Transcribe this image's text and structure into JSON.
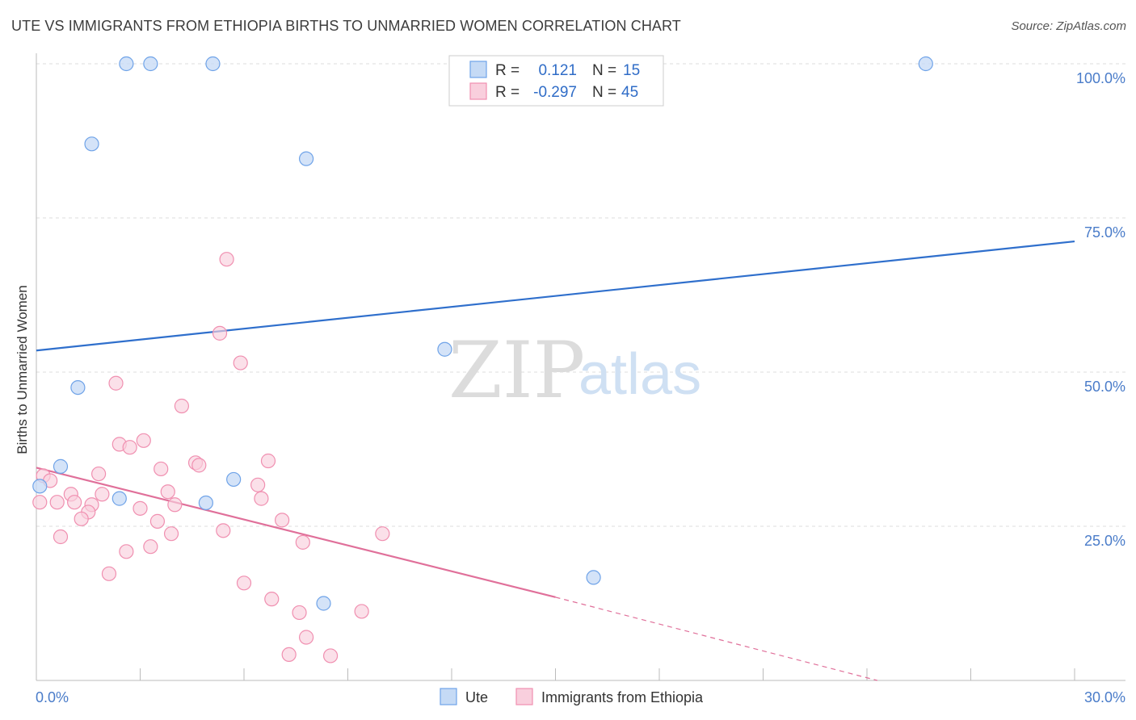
{
  "title": "UTE VS IMMIGRANTS FROM ETHIOPIA BIRTHS TO UNMARRIED WOMEN CORRELATION CHART",
  "source": "Source: ZipAtlas.com",
  "watermark": {
    "zip": "ZIP",
    "atlas": "atlas"
  },
  "colors": {
    "ute": "#6fa3e8",
    "ute_fill": "#c5daf5",
    "ute_line": "#2f6fcc",
    "eth": "#f08fb0",
    "eth_fill": "#f9cfdd",
    "eth_line": "#e0709a",
    "tick_text": "#4a7cc9",
    "grid": "#dddddd"
  },
  "legend": {
    "rows": [
      {
        "r_label": "R =",
        "r_value": "0.121",
        "n_label": "N =",
        "n_value": "15",
        "series": "ute"
      },
      {
        "r_label": "R =",
        "r_value": "-0.297",
        "n_label": "N =",
        "n_value": "45",
        "series": "eth"
      }
    ]
  },
  "chart_data": {
    "type": "scatter",
    "title": "UTE VS IMMIGRANTS FROM ETHIOPIA BIRTHS TO UNMARRIED WOMEN CORRELATION CHART",
    "xlabel": "",
    "ylabel": "Births to Unmarried Women",
    "xlim": [
      0,
      30
    ],
    "ylim": [
      0,
      100
    ],
    "x_tick_labels": [
      "0.0%",
      "30.0%"
    ],
    "y_ticks": [
      25,
      50,
      75,
      100
    ],
    "y_tick_labels": [
      "25.0%",
      "50.0%",
      "75.0%",
      "100.0%"
    ],
    "grid": true,
    "series": [
      {
        "name": "Ute",
        "points": [
          [
            2.6,
            100
          ],
          [
            3.3,
            100
          ],
          [
            5.1,
            100
          ],
          [
            25.7,
            100
          ],
          [
            1.6,
            87
          ],
          [
            7.8,
            84.6
          ],
          [
            11.8,
            53.7
          ],
          [
            1.2,
            47.5
          ],
          [
            0.7,
            34.7
          ],
          [
            0.1,
            31.5
          ],
          [
            2.4,
            29.5
          ],
          [
            4.9,
            28.8
          ],
          [
            5.7,
            32.6
          ],
          [
            8.3,
            12.5
          ],
          [
            16.1,
            16.7
          ]
        ],
        "trend": {
          "x": [
            0,
            30
          ],
          "y": [
            53.5,
            71.2
          ],
          "dashed_from": null
        }
      },
      {
        "name": "Immigrants from Ethiopia",
        "points": [
          [
            5.5,
            68.3
          ],
          [
            5.3,
            56.3
          ],
          [
            5.9,
            51.5
          ],
          [
            2.3,
            48.2
          ],
          [
            4.2,
            44.5
          ],
          [
            3.1,
            38.9
          ],
          [
            2.4,
            38.3
          ],
          [
            2.7,
            37.8
          ],
          [
            6.7,
            35.6
          ],
          [
            4.6,
            35.3
          ],
          [
            4.7,
            34.9
          ],
          [
            3.6,
            34.3
          ],
          [
            1.8,
            33.5
          ],
          [
            0.2,
            33.2
          ],
          [
            0.4,
            32.4
          ],
          [
            6.4,
            31.7
          ],
          [
            3.8,
            30.6
          ],
          [
            1.0,
            30.2
          ],
          [
            1.9,
            30.2
          ],
          [
            6.5,
            29.5
          ],
          [
            0.1,
            28.9
          ],
          [
            0.6,
            28.9
          ],
          [
            1.1,
            28.9
          ],
          [
            1.6,
            28.5
          ],
          [
            4.0,
            28.5
          ],
          [
            3.0,
            27.9
          ],
          [
            1.5,
            27.3
          ],
          [
            1.3,
            26.2
          ],
          [
            7.1,
            26.0
          ],
          [
            3.5,
            25.8
          ],
          [
            5.4,
            24.3
          ],
          [
            3.9,
            23.8
          ],
          [
            10.0,
            23.8
          ],
          [
            0.7,
            23.3
          ],
          [
            7.7,
            22.4
          ],
          [
            3.3,
            21.7
          ],
          [
            2.6,
            20.9
          ],
          [
            2.1,
            17.3
          ],
          [
            6.0,
            15.8
          ],
          [
            6.8,
            13.2
          ],
          [
            7.6,
            11.0
          ],
          [
            9.4,
            11.2
          ],
          [
            7.8,
            7.0
          ],
          [
            7.3,
            4.2
          ],
          [
            8.5,
            4.0
          ]
        ],
        "trend": {
          "x": [
            0,
            15
          ],
          "y": [
            34.5,
            13.5
          ],
          "dashed_to": {
            "x": 24.3,
            "y": 0
          }
        }
      }
    ]
  },
  "bottom_legend": [
    {
      "label": "Ute",
      "series": "ute"
    },
    {
      "label": "Immigrants from Ethiopia",
      "series": "eth"
    }
  ]
}
